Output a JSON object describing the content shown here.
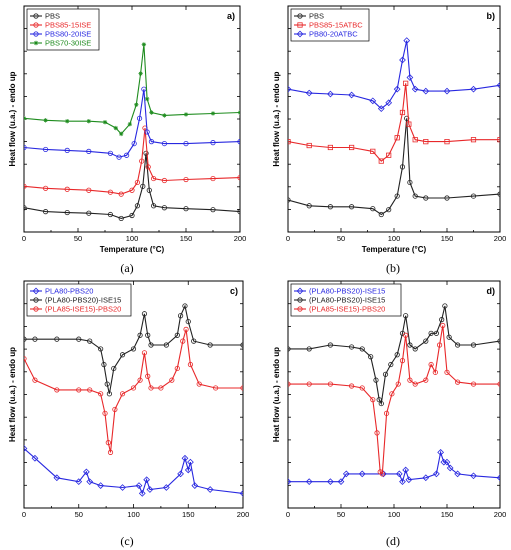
{
  "chart_data": [
    {
      "type": "line",
      "panel_tag": "a)",
      "caption": "(a)",
      "xlabel": "Temperature (°C)",
      "ylabel": "Heat flow (u.a.) - endo up",
      "xlim": [
        0,
        200
      ],
      "xticks": [
        "0",
        "50",
        "100",
        "150",
        "200"
      ],
      "legend_position": "top-left",
      "series": [
        {
          "name": "PBS",
          "color": "#222222",
          "marker": "circle",
          "x": [
            0,
            20,
            40,
            60,
            80,
            90,
            100,
            105,
            110,
            113,
            116,
            120,
            130,
            150,
            175,
            200
          ],
          "y": [
            0.09,
            0.07,
            0.065,
            0.062,
            0.055,
            0.035,
            0.05,
            0.1,
            0.2,
            0.37,
            0.18,
            0.1,
            0.09,
            0.085,
            0.08,
            0.07
          ]
        },
        {
          "name": "PBS85-15ISE",
          "color": "#e8282a",
          "marker": "circle",
          "x": [
            0,
            20,
            40,
            60,
            80,
            90,
            100,
            105,
            109,
            112,
            115,
            120,
            130,
            150,
            175,
            200
          ],
          "y": [
            0.2,
            0.19,
            0.185,
            0.18,
            0.17,
            0.16,
            0.18,
            0.22,
            0.33,
            0.5,
            0.3,
            0.24,
            0.23,
            0.235,
            0.24,
            0.245
          ]
        },
        {
          "name": "PBS80-20ISE",
          "color": "#2828e0",
          "marker": "circle",
          "x": [
            0,
            20,
            40,
            60,
            80,
            88,
            95,
            102,
            107,
            111,
            114,
            118,
            130,
            150,
            175,
            200
          ],
          "y": [
            0.4,
            0.39,
            0.385,
            0.38,
            0.37,
            0.35,
            0.36,
            0.42,
            0.55,
            0.7,
            0.48,
            0.43,
            0.42,
            0.42,
            0.425,
            0.43
          ]
        },
        {
          "name": "PBS70-30ISE",
          "color": "#1e8c1e",
          "marker": "star",
          "x": [
            0,
            20,
            40,
            60,
            75,
            85,
            90,
            98,
            104,
            108,
            111,
            114,
            118,
            130,
            150,
            175,
            200
          ],
          "y": [
            0.55,
            0.54,
            0.535,
            0.535,
            0.53,
            0.5,
            0.47,
            0.52,
            0.62,
            0.78,
            0.93,
            0.65,
            0.58,
            0.565,
            0.57,
            0.575,
            0.58
          ]
        }
      ]
    },
    {
      "type": "line",
      "panel_tag": "b)",
      "caption": "(b)",
      "xlabel": "Temperature (°C)",
      "ylabel": "Heat flow (u.a.) - endo up",
      "xlim": [
        0,
        200
      ],
      "xticks": [
        "0",
        "50",
        "100",
        "150",
        "200"
      ],
      "legend_position": "top-left",
      "series": [
        {
          "name": "PBS",
          "color": "#222222",
          "marker": "circle",
          "x": [
            0,
            20,
            40,
            60,
            80,
            88,
            95,
            103,
            108,
            112,
            115,
            120,
            130,
            150,
            175,
            200
          ],
          "y": [
            0.13,
            0.1,
            0.095,
            0.095,
            0.085,
            0.055,
            0.08,
            0.15,
            0.3,
            0.55,
            0.22,
            0.15,
            0.14,
            0.14,
            0.15,
            0.16
          ]
        },
        {
          "name": "PBS85-15ATBC",
          "color": "#e8282a",
          "marker": "square",
          "x": [
            0,
            20,
            40,
            60,
            80,
            88,
            95,
            103,
            108,
            111,
            114,
            120,
            130,
            150,
            175,
            200
          ],
          "y": [
            0.43,
            0.41,
            0.4,
            0.4,
            0.38,
            0.33,
            0.36,
            0.45,
            0.58,
            0.73,
            0.52,
            0.44,
            0.43,
            0.43,
            0.44,
            0.44
          ]
        },
        {
          "name": "PB80-20ATBC",
          "color": "#2828e0",
          "marker": "diamond",
          "x": [
            0,
            20,
            40,
            60,
            80,
            88,
            95,
            103,
            108,
            112,
            115,
            120,
            130,
            150,
            175,
            200
          ],
          "y": [
            0.7,
            0.68,
            0.675,
            0.67,
            0.64,
            0.6,
            0.63,
            0.7,
            0.85,
            0.95,
            0.76,
            0.7,
            0.69,
            0.69,
            0.7,
            0.72
          ]
        }
      ]
    },
    {
      "type": "line",
      "panel_tag": "c)",
      "caption": "(c)",
      "xlabel": "",
      "ylabel": "Heat flow (u.a.) - endo up",
      "xlim": [
        0,
        200
      ],
      "xticks": [
        "0",
        "50",
        "100",
        "150",
        "200"
      ],
      "legend_position": "top-left",
      "series": [
        {
          "name": "PLA80-PBS20",
          "color": "#2828e0",
          "marker": "diamond",
          "x": [
            0,
            10,
            30,
            50,
            57,
            60,
            70,
            90,
            105,
            108,
            112,
            115,
            130,
            143,
            147,
            150,
            152,
            156,
            170,
            200
          ],
          "y": [
            0.27,
            0.22,
            0.12,
            0.1,
            0.15,
            0.1,
            0.08,
            0.07,
            0.08,
            0.04,
            0.11,
            0.06,
            0.07,
            0.14,
            0.22,
            0.16,
            0.2,
            0.08,
            0.06,
            0.04
          ]
        },
        {
          "name": "(PLA80-PBS20)-ISE15",
          "color": "#222222",
          "marker": "circle",
          "x": [
            0,
            10,
            30,
            50,
            60,
            70,
            73,
            76,
            78,
            82,
            90,
            100,
            106,
            110,
            113,
            116,
            130,
            140,
            143,
            147,
            150,
            155,
            170,
            200
          ],
          "y": [
            0.83,
            0.83,
            0.83,
            0.83,
            0.82,
            0.78,
            0.7,
            0.6,
            0.55,
            0.68,
            0.75,
            0.78,
            0.85,
            0.96,
            0.85,
            0.8,
            0.8,
            0.85,
            0.95,
            1.0,
            0.92,
            0.82,
            0.8,
            0.8
          ]
        },
        {
          "name": "(PLA85-ISE15)-PBS20",
          "color": "#e8282a",
          "marker": "circle",
          "x": [
            0,
            10,
            30,
            50,
            60,
            70,
            74,
            77,
            79,
            83,
            90,
            100,
            106,
            110,
            113,
            116,
            125,
            135,
            140,
            145,
            148,
            152,
            160,
            175,
            200
          ],
          "y": [
            0.73,
            0.62,
            0.57,
            0.57,
            0.57,
            0.55,
            0.45,
            0.3,
            0.25,
            0.47,
            0.55,
            0.58,
            0.62,
            0.76,
            0.64,
            0.58,
            0.58,
            0.62,
            0.68,
            0.82,
            0.88,
            0.7,
            0.6,
            0.58,
            0.58
          ]
        }
      ]
    },
    {
      "type": "line",
      "panel_tag": "d)",
      "caption": "(d)",
      "xlabel": "",
      "ylabel": "Heat flow (u.a.) - endo up",
      "xlim": [
        0,
        200
      ],
      "xticks": [
        "0",
        "50",
        "100",
        "150",
        "200"
      ],
      "legend_position": "top-left",
      "series": [
        {
          "name": "(PLA80-PBS20)-ISE15",
          "color": "#2828e0",
          "marker": "diamond",
          "x": [
            0,
            20,
            40,
            50,
            55,
            70,
            90,
            105,
            108,
            111,
            114,
            130,
            140,
            144,
            147,
            150,
            153,
            160,
            175,
            200
          ],
          "y": [
            0.1,
            0.1,
            0.1,
            0.1,
            0.14,
            0.14,
            0.14,
            0.14,
            0.1,
            0.16,
            0.11,
            0.12,
            0.14,
            0.25,
            0.2,
            0.2,
            0.17,
            0.14,
            0.13,
            0.12
          ]
        },
        {
          "name": "(PLA80-PBS20)-ISE15",
          "color": "#222222",
          "marker": "circle",
          "x": [
            0,
            20,
            40,
            60,
            70,
            78,
            83,
            86,
            88,
            92,
            97,
            103,
            108,
            111,
            115,
            120,
            130,
            135,
            140,
            145,
            148,
            152,
            160,
            175,
            200
          ],
          "y": [
            0.78,
            0.78,
            0.8,
            0.79,
            0.78,
            0.74,
            0.62,
            0.52,
            0.5,
            0.65,
            0.7,
            0.75,
            0.86,
            0.95,
            0.8,
            0.78,
            0.82,
            0.86,
            0.86,
            0.93,
            1.0,
            0.84,
            0.8,
            0.8,
            0.82
          ]
        },
        {
          "name": "(PLA85-ISE15)-PBS20",
          "color": "#e8282a",
          "marker": "circle",
          "x": [
            0,
            20,
            40,
            60,
            70,
            80,
            84,
            87,
            89,
            93,
            98,
            104,
            108,
            111,
            115,
            120,
            130,
            135,
            139,
            143,
            146,
            150,
            160,
            175,
            200
          ],
          "y": [
            0.6,
            0.6,
            0.6,
            0.59,
            0.58,
            0.52,
            0.35,
            0.15,
            0.14,
            0.45,
            0.55,
            0.6,
            0.72,
            0.85,
            0.62,
            0.6,
            0.62,
            0.7,
            0.66,
            0.8,
            0.9,
            0.66,
            0.61,
            0.6,
            0.6
          ]
        }
      ]
    }
  ]
}
